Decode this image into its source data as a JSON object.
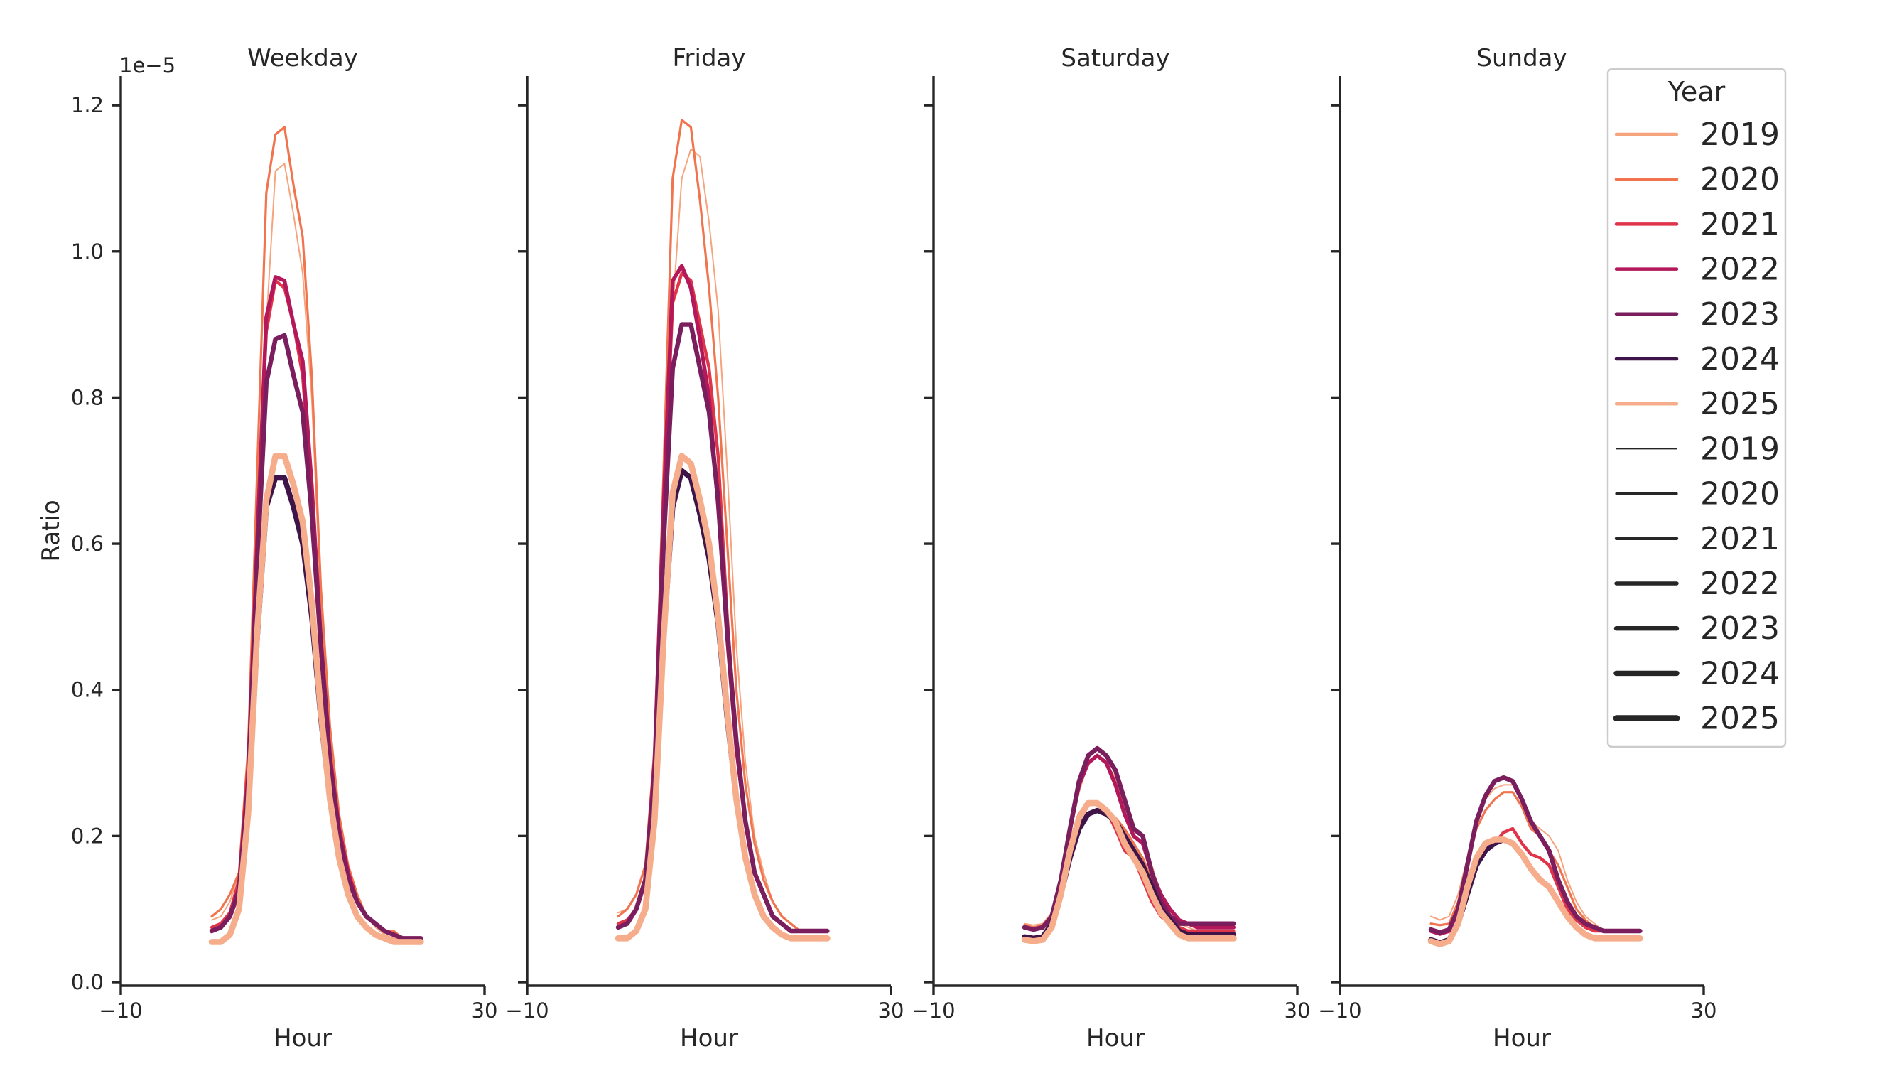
{
  "chart_data": {
    "type": "line",
    "xlabel": "Hour",
    "ylabel": "Ratio",
    "offset_text": "1e−5",
    "xlim": [
      -10,
      30
    ],
    "xticks": [
      "−10",
      "30"
    ],
    "ylim": [
      0,
      1.24
    ],
    "yticks": [
      "0.0",
      "0.2",
      "0.4",
      "0.6",
      "0.8",
      "1.0",
      "1.2"
    ],
    "x": [
      0,
      1,
      2,
      3,
      4,
      5,
      6,
      7,
      8,
      9,
      10,
      11,
      12,
      13,
      14,
      15,
      16,
      17,
      18,
      19,
      20,
      21,
      22,
      23
    ],
    "colors": {
      "2019": "#f6a47d",
      "2020": "#f0744e",
      "2021": "#e0344a",
      "2022": "#b3185a",
      "2023": "#7a1e5e",
      "2024": "#3f1448",
      "2025": "#f5ad8c",
      "size": "#262626"
    },
    "legend": {
      "title": "Year",
      "location": "upper right",
      "hue_entries": [
        "2019",
        "2020",
        "2021",
        "2022",
        "2023",
        "2024",
        "2025"
      ],
      "size_entries": [
        "2019",
        "2020",
        "2021",
        "2022",
        "2023",
        "2024",
        "2025"
      ]
    },
    "panels": [
      {
        "title": "Weekday",
        "series": [
          {
            "name": "2019",
            "values": [
              0.085,
              0.09,
              0.11,
              0.15,
              0.3,
              0.63,
              0.9,
              1.11,
              1.12,
              1.05,
              0.97,
              0.8,
              0.52,
              0.33,
              0.23,
              0.16,
              0.12,
              0.09,
              0.075,
              0.065,
              0.06,
              0.06,
              0.06,
              0.06
            ]
          },
          {
            "name": "2020",
            "values": [
              0.09,
              0.1,
              0.12,
              0.15,
              0.32,
              0.7,
              1.08,
              1.16,
              1.17,
              1.09,
              1.02,
              0.83,
              0.54,
              0.35,
              0.23,
              0.16,
              0.12,
              0.09,
              0.08,
              0.07,
              0.07,
              0.06,
              0.06,
              0.06
            ]
          },
          {
            "name": "2021",
            "values": [
              0.075,
              0.08,
              0.095,
              0.14,
              0.3,
              0.62,
              0.89,
              0.96,
              0.95,
              0.9,
              0.83,
              0.66,
              0.45,
              0.3,
              0.2,
              0.14,
              0.11,
              0.09,
              0.08,
              0.07,
              0.065,
              0.06,
              0.06,
              0.06
            ]
          },
          {
            "name": "2022",
            "values": [
              0.07,
              0.075,
              0.09,
              0.13,
              0.28,
              0.6,
              0.91,
              0.965,
              0.96,
              0.9,
              0.85,
              0.68,
              0.47,
              0.31,
              0.21,
              0.15,
              0.11,
              0.09,
              0.08,
              0.07,
              0.065,
              0.06,
              0.06,
              0.06
            ]
          },
          {
            "name": "2023",
            "values": [
              0.07,
              0.075,
              0.09,
              0.125,
              0.27,
              0.57,
              0.82,
              0.88,
              0.885,
              0.83,
              0.78,
              0.64,
              0.46,
              0.3,
              0.2,
              0.14,
              0.11,
              0.09,
              0.08,
              0.07,
              0.065,
              0.06,
              0.06,
              0.06
            ]
          },
          {
            "name": "2024",
            "values": [
              0.055,
              0.055,
              0.065,
              0.1,
              0.23,
              0.47,
              0.65,
              0.69,
              0.69,
              0.65,
              0.6,
              0.5,
              0.36,
              0.25,
              0.17,
              0.12,
              0.09,
              0.075,
              0.065,
              0.06,
              0.055,
              0.055,
              0.055,
              0.055
            ]
          },
          {
            "name": "2025",
            "values": [
              0.055,
              0.055,
              0.065,
              0.1,
              0.23,
              0.48,
              0.66,
              0.72,
              0.72,
              0.68,
              0.63,
              0.52,
              0.37,
              0.25,
              0.17,
              0.12,
              0.09,
              0.075,
              0.065,
              0.06,
              0.055,
              0.055,
              0.055,
              0.055
            ]
          }
        ]
      },
      {
        "title": "Friday",
        "series": [
          {
            "name": "2019",
            "values": [
              0.095,
              0.1,
              0.12,
              0.16,
              0.3,
              0.62,
              0.92,
              1.1,
              1.14,
              1.13,
              1.04,
              0.92,
              0.7,
              0.46,
              0.3,
              0.2,
              0.15,
              0.11,
              0.09,
              0.08,
              0.07,
              0.07,
              0.07,
              0.07
            ]
          },
          {
            "name": "2020",
            "values": [
              0.09,
              0.1,
              0.12,
              0.16,
              0.32,
              0.7,
              1.1,
              1.18,
              1.17,
              1.07,
              0.95,
              0.8,
              0.6,
              0.4,
              0.27,
              0.19,
              0.14,
              0.11,
              0.09,
              0.08,
              0.07,
              0.07,
              0.07,
              0.07
            ]
          },
          {
            "name": "2021",
            "values": [
              0.08,
              0.085,
              0.1,
              0.14,
              0.3,
              0.64,
              0.93,
              0.97,
              0.96,
              0.9,
              0.84,
              0.72,
              0.5,
              0.33,
              0.22,
              0.15,
              0.12,
              0.09,
              0.08,
              0.07,
              0.07,
              0.07,
              0.07,
              0.07
            ]
          },
          {
            "name": "2022",
            "values": [
              0.075,
              0.08,
              0.1,
              0.14,
              0.3,
              0.65,
              0.96,
              0.98,
              0.95,
              0.88,
              0.8,
              0.65,
              0.47,
              0.32,
              0.22,
              0.15,
              0.12,
              0.09,
              0.08,
              0.07,
              0.07,
              0.07,
              0.07,
              0.07
            ]
          },
          {
            "name": "2023",
            "values": [
              0.075,
              0.08,
              0.1,
              0.14,
              0.28,
              0.6,
              0.84,
              0.9,
              0.9,
              0.84,
              0.78,
              0.66,
              0.48,
              0.33,
              0.22,
              0.15,
              0.12,
              0.09,
              0.08,
              0.07,
              0.07,
              0.07,
              0.07,
              0.07
            ]
          },
          {
            "name": "2024",
            "values": [
              0.06,
              0.06,
              0.07,
              0.1,
              0.22,
              0.47,
              0.65,
              0.7,
              0.69,
              0.64,
              0.58,
              0.49,
              0.36,
              0.25,
              0.17,
              0.12,
              0.09,
              0.075,
              0.065,
              0.06,
              0.06,
              0.06,
              0.06,
              0.06
            ]
          },
          {
            "name": "2025",
            "values": [
              0.06,
              0.06,
              0.07,
              0.1,
              0.22,
              0.47,
              0.67,
              0.72,
              0.71,
              0.66,
              0.6,
              0.5,
              0.37,
              0.25,
              0.17,
              0.12,
              0.09,
              0.075,
              0.065,
              0.06,
              0.06,
              0.06,
              0.06,
              0.06
            ]
          }
        ]
      },
      {
        "title": "Saturday",
        "series": [
          {
            "name": "2019",
            "values": [
              0.08,
              0.078,
              0.08,
              0.095,
              0.14,
              0.2,
              0.26,
              0.3,
              0.31,
              0.3,
              0.28,
              0.24,
              0.21,
              0.2,
              0.16,
              0.12,
              0.1,
              0.08,
              0.075,
              0.07,
              0.07,
              0.07,
              0.07,
              0.07
            ]
          },
          {
            "name": "2020",
            "values": [
              0.078,
              0.075,
              0.078,
              0.09,
              0.13,
              0.19,
              0.23,
              0.245,
              0.245,
              0.235,
              0.225,
              0.21,
              0.19,
              0.17,
              0.14,
              0.11,
              0.09,
              0.075,
              0.07,
              0.07,
              0.07,
              0.07,
              0.07,
              0.07
            ]
          },
          {
            "name": "2021",
            "values": [
              0.075,
              0.072,
              0.075,
              0.09,
              0.13,
              0.19,
              0.23,
              0.245,
              0.245,
              0.235,
              0.21,
              0.18,
              0.17,
              0.14,
              0.11,
              0.09,
              0.08,
              0.075,
              0.07,
              0.07,
              0.07,
              0.07,
              0.07,
              0.07
            ]
          },
          {
            "name": "2022",
            "values": [
              0.075,
              0.072,
              0.075,
              0.09,
              0.14,
              0.21,
              0.27,
              0.3,
              0.31,
              0.3,
              0.27,
              0.23,
              0.2,
              0.19,
              0.15,
              0.12,
              0.1,
              0.085,
              0.08,
              0.075,
              0.075,
              0.075,
              0.075,
              0.075
            ]
          },
          {
            "name": "2023",
            "values": [
              0.075,
              0.072,
              0.075,
              0.09,
              0.14,
              0.21,
              0.275,
              0.31,
              0.32,
              0.31,
              0.29,
              0.25,
              0.21,
              0.2,
              0.15,
              0.11,
              0.09,
              0.08,
              0.08,
              0.08,
              0.08,
              0.08,
              0.08,
              0.08
            ]
          },
          {
            "name": "2024",
            "values": [
              0.062,
              0.06,
              0.062,
              0.08,
              0.12,
              0.17,
              0.21,
              0.23,
              0.235,
              0.23,
              0.22,
              0.2,
              0.18,
              0.16,
              0.13,
              0.1,
              0.085,
              0.07,
              0.065,
              0.065,
              0.065,
              0.065,
              0.065,
              0.065
            ]
          },
          {
            "name": "2025",
            "values": [
              0.058,
              0.056,
              0.058,
              0.075,
              0.12,
              0.18,
              0.225,
              0.245,
              0.245,
              0.235,
              0.22,
              0.19,
              0.17,
              0.15,
              0.12,
              0.095,
              0.08,
              0.065,
              0.06,
              0.06,
              0.06,
              0.06,
              0.06,
              0.06
            ]
          }
        ]
      },
      {
        "title": "Sunday",
        "series": [
          {
            "name": "2019",
            "values": [
              0.09,
              0.085,
              0.09,
              0.12,
              0.17,
              0.22,
              0.25,
              0.265,
              0.27,
              0.27,
              0.25,
              0.22,
              0.21,
              0.2,
              0.18,
              0.14,
              0.11,
              0.09,
              0.08,
              0.07,
              0.07,
              0.07,
              0.07,
              0.07
            ]
          },
          {
            "name": "2020",
            "values": [
              0.08,
              0.078,
              0.08,
              0.11,
              0.16,
              0.21,
              0.235,
              0.25,
              0.26,
              0.26,
              0.24,
              0.21,
              0.2,
              0.18,
              0.16,
              0.13,
              0.1,
              0.085,
              0.075,
              0.07,
              0.07,
              0.07,
              0.07,
              0.07
            ]
          },
          {
            "name": "2021",
            "values": [
              0.07,
              0.068,
              0.07,
              0.095,
              0.14,
              0.17,
              0.18,
              0.19,
              0.205,
              0.21,
              0.19,
              0.175,
              0.17,
              0.16,
              0.13,
              0.1,
              0.085,
              0.075,
              0.07,
              0.07,
              0.07,
              0.07,
              0.07,
              0.07
            ]
          },
          {
            "name": "2022",
            "values": [
              0.07,
              0.066,
              0.07,
              0.1,
              0.16,
              0.22,
              0.255,
              0.275,
              0.28,
              0.275,
              0.25,
              0.22,
              0.2,
              0.18,
              0.14,
              0.11,
              0.09,
              0.08,
              0.075,
              0.07,
              0.07,
              0.07,
              0.07,
              0.07
            ]
          },
          {
            "name": "2023",
            "values": [
              0.072,
              0.068,
              0.072,
              0.1,
              0.16,
              0.22,
              0.255,
              0.275,
              0.28,
              0.275,
              0.25,
              0.22,
              0.2,
              0.18,
              0.14,
              0.11,
              0.09,
              0.08,
              0.075,
              0.07,
              0.07,
              0.07,
              0.07,
              0.07
            ]
          },
          {
            "name": "2024",
            "values": [
              0.058,
              0.054,
              0.058,
              0.08,
              0.12,
              0.16,
              0.18,
              0.19,
              0.195,
              0.19,
              0.175,
              0.155,
              0.14,
              0.13,
              0.11,
              0.09,
              0.075,
              0.065,
              0.06,
              0.06,
              0.06,
              0.06,
              0.06,
              0.06
            ]
          },
          {
            "name": "2025",
            "values": [
              0.056,
              0.052,
              0.056,
              0.08,
              0.13,
              0.17,
              0.19,
              0.195,
              0.195,
              0.19,
              0.175,
              0.155,
              0.14,
              0.13,
              0.11,
              0.09,
              0.075,
              0.065,
              0.06,
              0.06,
              0.06,
              0.06,
              0.06,
              0.06
            ]
          }
        ]
      }
    ]
  }
}
